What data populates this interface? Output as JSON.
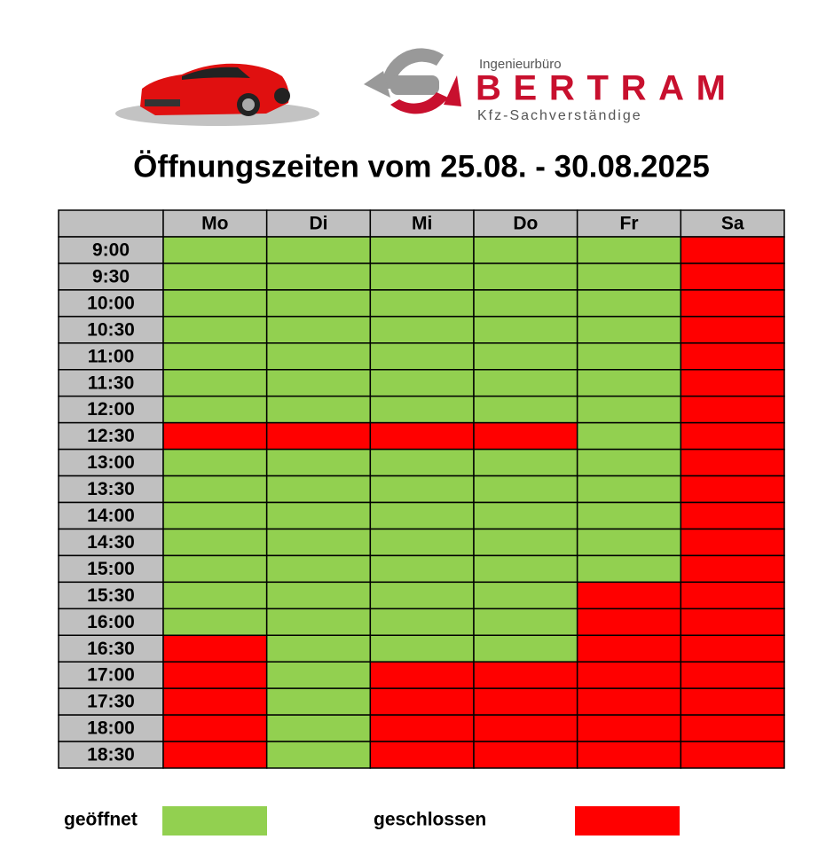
{
  "header": {
    "company_prefix": "Ingenieurbüro",
    "company_name": "BERTRAM",
    "company_suffix": "Kfz-Sachverständige",
    "title": "Öffnungszeiten vom 25.08. - 30.08.2025"
  },
  "table": {
    "days": [
      "Mo",
      "Di",
      "Mi",
      "Do",
      "Fr",
      "Sa"
    ],
    "times": [
      "9:00",
      "9:30",
      "10:00",
      "10:30",
      "11:00",
      "11:30",
      "12:00",
      "12:30",
      "13:00",
      "13:30",
      "14:00",
      "14:30",
      "15:00",
      "15:30",
      "16:00",
      "16:30",
      "17:00",
      "17:30",
      "18:00",
      "18:30"
    ],
    "rows": [
      [
        "#92d050",
        "#92d050",
        "#92d050",
        "#92d050",
        "#92d050",
        "#ff0000"
      ],
      [
        "#92d050",
        "#92d050",
        "#92d050",
        "#92d050",
        "#92d050",
        "#ff0000"
      ],
      [
        "#92d050",
        "#92d050",
        "#92d050",
        "#92d050",
        "#92d050",
        "#ff0000"
      ],
      [
        "#92d050",
        "#92d050",
        "#92d050",
        "#92d050",
        "#92d050",
        "#ff0000"
      ],
      [
        "#92d050",
        "#92d050",
        "#92d050",
        "#92d050",
        "#92d050",
        "#ff0000"
      ],
      [
        "#92d050",
        "#92d050",
        "#92d050",
        "#92d050",
        "#92d050",
        "#ff0000"
      ],
      [
        "#92d050",
        "#92d050",
        "#92d050",
        "#92d050",
        "#92d050",
        "#ff0000"
      ],
      [
        "#ff0000",
        "#ff0000",
        "#ff0000",
        "#ff0000",
        "#92d050",
        "#ff0000"
      ],
      [
        "#92d050",
        "#92d050",
        "#92d050",
        "#92d050",
        "#92d050",
        "#ff0000"
      ],
      [
        "#92d050",
        "#92d050",
        "#92d050",
        "#92d050",
        "#92d050",
        "#ff0000"
      ],
      [
        "#92d050",
        "#92d050",
        "#92d050",
        "#92d050",
        "#92d050",
        "#ff0000"
      ],
      [
        "#92d050",
        "#92d050",
        "#92d050",
        "#92d050",
        "#92d050",
        "#ff0000"
      ],
      [
        "#92d050",
        "#92d050",
        "#92d050",
        "#92d050",
        "#92d050",
        "#ff0000"
      ],
      [
        "#92d050",
        "#92d050",
        "#92d050",
        "#92d050",
        "#ff0000",
        "#ff0000"
      ],
      [
        "#92d050",
        "#92d050",
        "#92d050",
        "#92d050",
        "#ff0000",
        "#ff0000"
      ],
      [
        "#ff0000",
        "#92d050",
        "#92d050",
        "#92d050",
        "#ff0000",
        "#ff0000"
      ],
      [
        "#ff0000",
        "#92d050",
        "#ff0000",
        "#ff0000",
        "#ff0000",
        "#ff0000"
      ],
      [
        "#ff0000",
        "#92d050",
        "#ff0000",
        "#ff0000",
        "#ff0000",
        "#ff0000"
      ],
      [
        "#ff0000",
        "#92d050",
        "#ff0000",
        "#ff0000",
        "#ff0000",
        "#ff0000"
      ],
      [
        "#ff0000",
        "#92d050",
        "#ff0000",
        "#ff0000",
        "#ff0000",
        "#ff0000"
      ]
    ]
  },
  "legend": [
    {
      "label": "geöffnet",
      "color": "#92d050"
    },
    {
      "label": "geschlossen",
      "color": "#ff0000"
    }
  ]
}
